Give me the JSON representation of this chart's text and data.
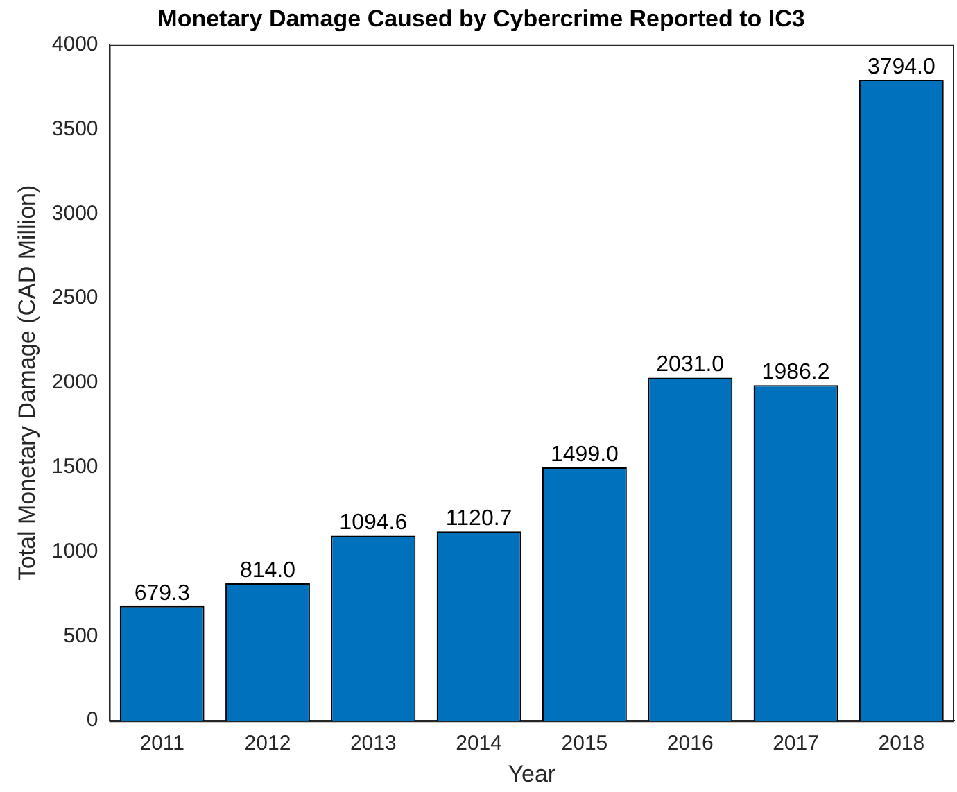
{
  "chart_data": {
    "type": "bar",
    "title": "Monetary Damage Caused by Cybercrime Reported to IC3",
    "xlabel": "Year",
    "ylabel": "Total Monetary Damage (CAD Million)",
    "categories": [
      "2011",
      "2012",
      "2013",
      "2014",
      "2015",
      "2016",
      "2017",
      "2018"
    ],
    "values": [
      679.3,
      814.0,
      1094.6,
      1120.7,
      1499.0,
      2031.0,
      1986.2,
      3794.0
    ],
    "value_labels": [
      "679.3",
      "814.0",
      "1094.6",
      "1120.7",
      "1499.0",
      "2031.0",
      "1986.2",
      "3794.0"
    ],
    "color": "#0072bd",
    "ylim": [
      0,
      4000
    ],
    "yticks": [
      0,
      500,
      1000,
      1500,
      2000,
      2500,
      3000,
      3500,
      4000
    ],
    "grid": false,
    "legend": false
  }
}
